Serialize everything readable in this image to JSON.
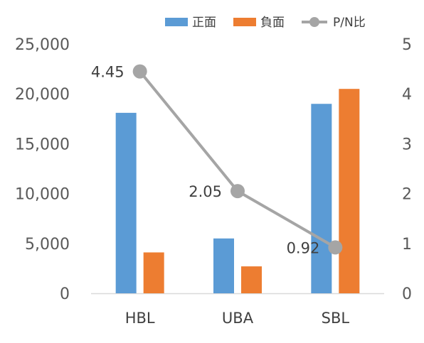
{
  "chart_data": {
    "type": "bar",
    "categories": [
      "HBL",
      "UBA",
      "SBL"
    ],
    "series": [
      {
        "name": "正面",
        "kind": "bar",
        "axis": "left",
        "color": "#5B9BD5",
        "values": [
          18100,
          5500,
          19000
        ]
      },
      {
        "name": "負面",
        "kind": "bar",
        "axis": "left",
        "color": "#ED7D31",
        "values": [
          4100,
          2700,
          20500
        ]
      },
      {
        "name": "P/N比",
        "kind": "line",
        "axis": "right",
        "color": "#A5A5A5",
        "values": [
          4.45,
          2.05,
          0.92
        ]
      }
    ],
    "data_labels": [
      "4.45",
      "2.05",
      "0.92"
    ],
    "y_left": {
      "min": 0,
      "max": 25000,
      "ticks": [
        "0",
        "5,000",
        "10,000",
        "15,000",
        "20,000",
        "25,000"
      ]
    },
    "y_right": {
      "min": 0,
      "max": 5,
      "ticks": [
        "0",
        "1",
        "2",
        "3",
        "4",
        "5"
      ]
    },
    "legend_position": "top-right",
    "grid": false,
    "title": "",
    "xlabel": "",
    "ylabel": ""
  }
}
